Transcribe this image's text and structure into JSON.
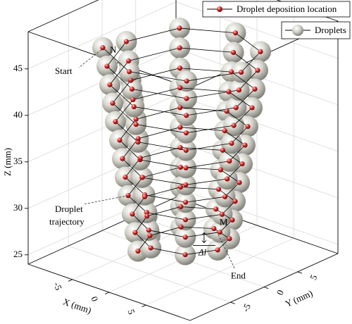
{
  "chart_data": {
    "type": "scatter3d",
    "xlabel": "X (mm)",
    "ylabel": "Y (mm)",
    "zlabel": "Z (mm)",
    "xlim": [
      -11,
      11
    ],
    "ylim": [
      -11,
      11
    ],
    "zlim": [
      24,
      49
    ],
    "xticks": [
      -5,
      0,
      5
    ],
    "yticks": [
      -5,
      0,
      5
    ],
    "zticks": [
      25,
      30,
      35,
      40,
      45
    ],
    "grid": true,
    "legend": "upper right",
    "series": [
      {
        "name": "Droplet deposition location",
        "color": "#d42a2a",
        "line_color": "#000000",
        "x": [
          -5.7,
          0,
          5.6,
          7.9,
          5.5,
          0,
          -5.5,
          -7.7,
          -5.4,
          0,
          5.4,
          7.6,
          5.3,
          0,
          -5.3,
          -7.4,
          -5.2,
          0,
          5.1,
          7.2,
          5.1,
          0,
          -5.0,
          -7.1,
          -5.0,
          0,
          4.9,
          6.9,
          4.9,
          0,
          -4.8,
          -6.8,
          -4.8,
          0,
          4.7,
          6.6,
          4.6,
          0,
          -4.6,
          -6.4,
          -4.5,
          0,
          4.5,
          6.3,
          4.4,
          0,
          -4.4,
          -6.1,
          -4.3,
          0,
          4.2,
          6.0,
          4.2,
          0,
          -4.1,
          -5.8,
          -4.1,
          0,
          4.0,
          5.7,
          4.0,
          0,
          -3.9,
          -5.5,
          -3.9,
          0,
          3.8,
          5.3,
          3.7,
          0,
          -3.7,
          -5.2,
          -3.6,
          0,
          3.6,
          5.0,
          3.5,
          0,
          -3.5,
          -4.9,
          -3.4,
          0,
          3.4,
          4.7,
          3.3,
          0,
          -3.2,
          -4.5,
          -3.2
        ],
        "y": [
          -5.7,
          -8.0,
          -5.6,
          0,
          5.5,
          7.8,
          5.5,
          0,
          -5.4,
          -7.6,
          -5.4,
          0,
          5.3,
          7.5,
          5.3,
          0,
          -5.2,
          -7.3,
          -5.1,
          0,
          5.1,
          7.2,
          5.0,
          0,
          -5.0,
          -7.0,
          -4.9,
          0,
          4.9,
          6.8,
          4.8,
          0,
          -4.8,
          -6.7,
          -4.7,
          0,
          4.6,
          6.5,
          4.6,
          0,
          -4.5,
          -6.4,
          -4.5,
          0,
          4.4,
          6.2,
          4.4,
          0,
          -4.3,
          -6.1,
          -4.2,
          0,
          4.2,
          5.9,
          4.1,
          0,
          -4.1,
          -5.7,
          -4.0,
          0,
          4.0,
          5.6,
          3.9,
          0,
          -3.9,
          -5.4,
          -3.8,
          0,
          3.7,
          5.3,
          3.7,
          0,
          -3.6,
          -5.1,
          -3.6,
          0,
          3.5,
          4.9,
          3.5,
          0,
          -3.4,
          -4.8,
          -3.4,
          0,
          3.3,
          4.6,
          3.2,
          0,
          -3.2
        ],
        "z": [
          47,
          46.75,
          46.5,
          46.25,
          46,
          45.75,
          45.5,
          45.25,
          45,
          44.75,
          44.5,
          44.25,
          44,
          43.75,
          43.5,
          43.25,
          43,
          42.75,
          42.5,
          42.25,
          42,
          41.75,
          41.5,
          41.25,
          41,
          40.75,
          40.5,
          40.25,
          40,
          39.75,
          39.5,
          39.25,
          39,
          38.75,
          38.5,
          38.25,
          38,
          37.75,
          37.5,
          37.25,
          37,
          36.75,
          36.5,
          36.25,
          36,
          35.75,
          35.5,
          35.25,
          35,
          34.75,
          34.5,
          34.25,
          34,
          33.75,
          33.5,
          33.25,
          33,
          32.75,
          32.5,
          32.25,
          32,
          31.75,
          31.5,
          31.25,
          31,
          30.75,
          30.5,
          30.25,
          30,
          29.75,
          29.5,
          29.25,
          29,
          28.75,
          28.5,
          28.25,
          28,
          27.75,
          27.5,
          27.25,
          27,
          26.75,
          26.5,
          26.25,
          26,
          25.75,
          25.5,
          25.25,
          25
        ]
      },
      {
        "name": "Droplets",
        "color": "#d8d8d0"
      }
    ],
    "annotations": [
      "N",
      "Start",
      "Droplet",
      "trajectory",
      "M",
      "Δl",
      "End"
    ]
  }
}
